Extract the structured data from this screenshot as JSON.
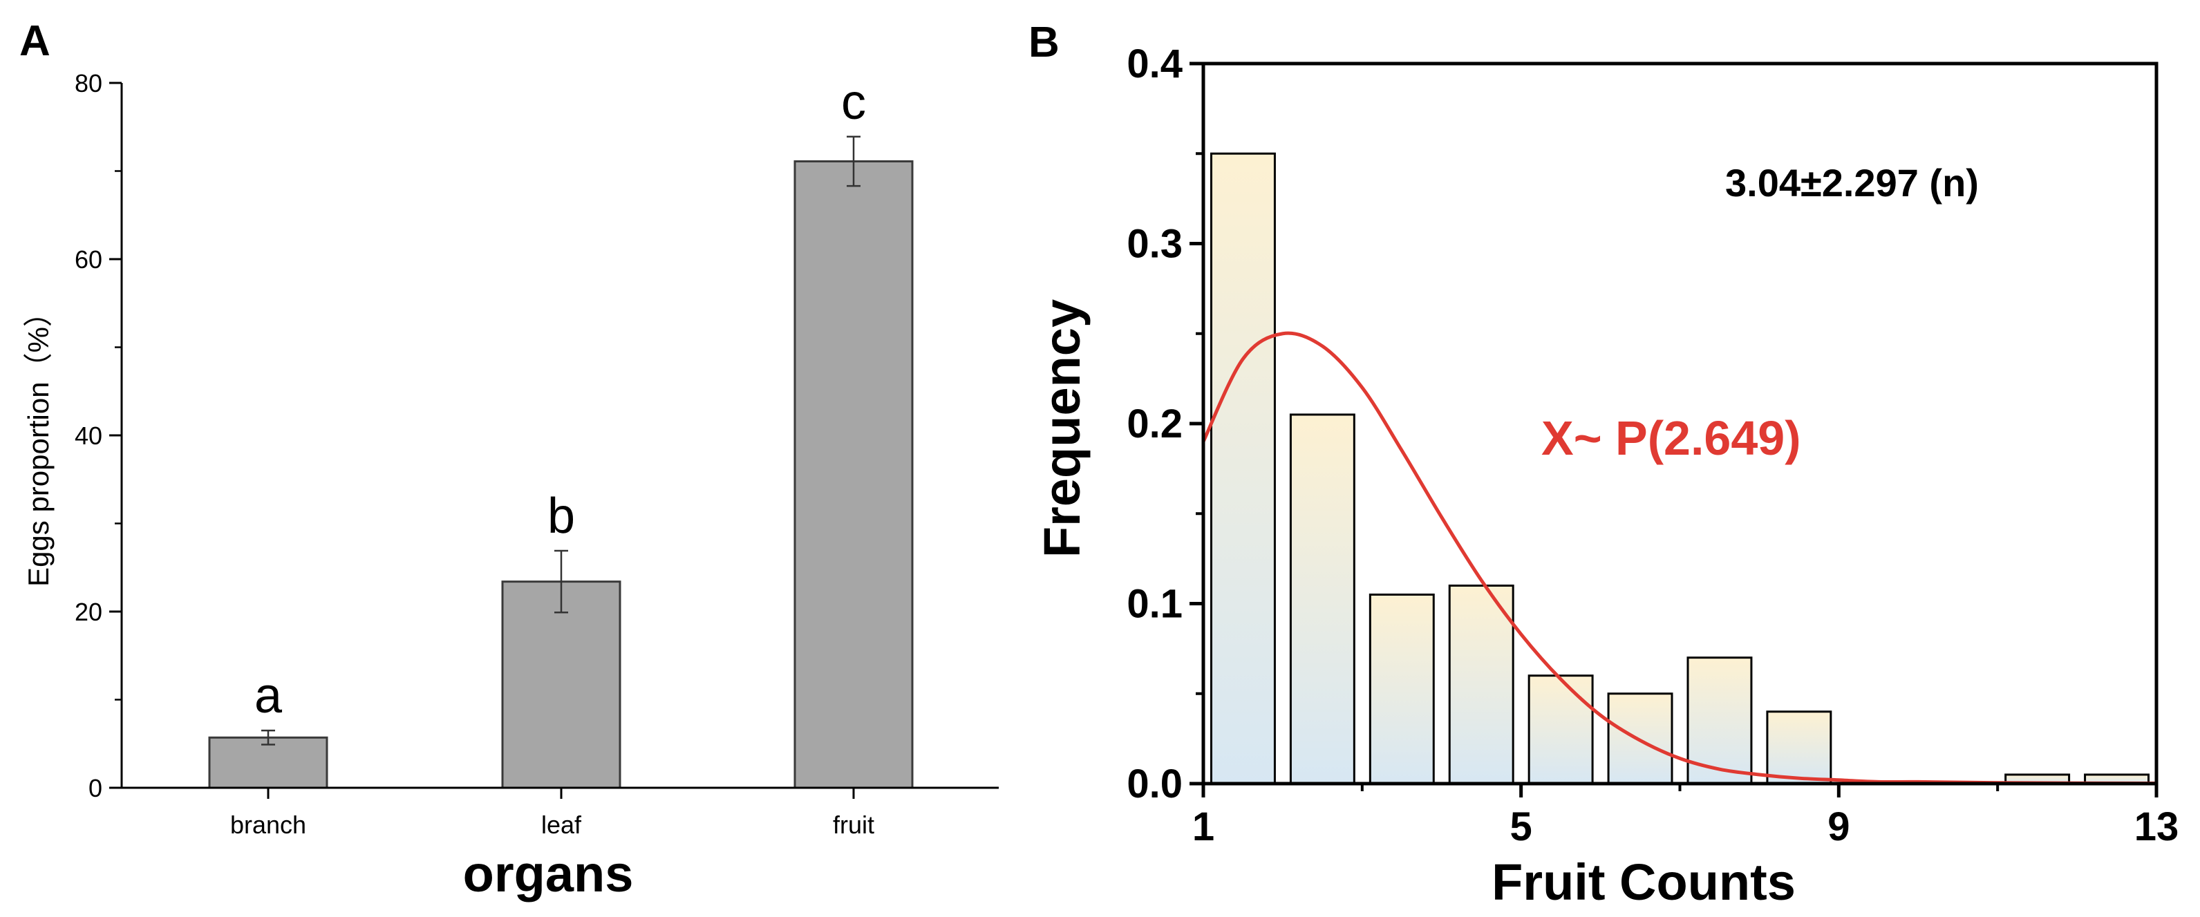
{
  "chart_data": [
    {
      "panel_label": "A",
      "type": "bar",
      "categories": [
        "branch",
        "leaf",
        "fruit"
      ],
      "values": [
        5.7,
        23.4,
        71.1
      ],
      "errors": [
        0.8,
        3.5,
        2.8
      ],
      "significance_letters": [
        "a",
        "b",
        "c"
      ],
      "xlabel": "organs",
      "ylabel": "Eggs proportion（%）",
      "ylim": [
        0,
        80
      ],
      "yticks": [
        0,
        20,
        40,
        60,
        80
      ],
      "bar_color": "#a6a6a6",
      "grid": false
    },
    {
      "panel_label": "B",
      "type": "bar",
      "x": [
        1.5,
        2.5,
        3.5,
        4.5,
        5.5,
        6.5,
        7.5,
        8.5,
        9.5,
        10.5,
        11.5,
        12.5
      ],
      "bin_width": 1,
      "values": [
        0.35,
        0.205,
        0.105,
        0.11,
        0.06,
        0.05,
        0.07,
        0.04,
        0.0,
        0.0,
        0.005,
        0.005
      ],
      "xlabel": "Fruit Counts",
      "ylabel": "Frequency",
      "xlim": [
        1,
        13
      ],
      "ylim": [
        0,
        0.4
      ],
      "xticks": [
        1,
        5,
        9,
        13
      ],
      "yticks": [
        "0.0",
        "0.1",
        "0.2",
        "0.3",
        "0.4"
      ],
      "annotations": [
        "3.04±2.297 (n)",
        "X~ P(2.649)"
      ],
      "fit": {
        "name": "X~ P(2.649)",
        "color": "#e03a32",
        "x": [
          1.0,
          1.5,
          2.0,
          2.5,
          3.0,
          3.5,
          4.0,
          4.5,
          5.0,
          5.5,
          6.0,
          6.5,
          7.0,
          7.5,
          8.0,
          8.5,
          9.0,
          9.5,
          10.0,
          11.0,
          12.0,
          13.0
        ],
        "y": [
          0.19,
          0.236,
          0.25,
          0.243,
          0.22,
          0.185,
          0.148,
          0.113,
          0.083,
          0.058,
          0.038,
          0.024,
          0.014,
          0.008,
          0.005,
          0.003,
          0.002,
          0.001,
          0.001,
          0.0005,
          0.0003,
          0.0002
        ]
      },
      "bar_gradient": [
        "#fdf1d2",
        "#d7e7f3"
      ],
      "grid": false
    }
  ]
}
